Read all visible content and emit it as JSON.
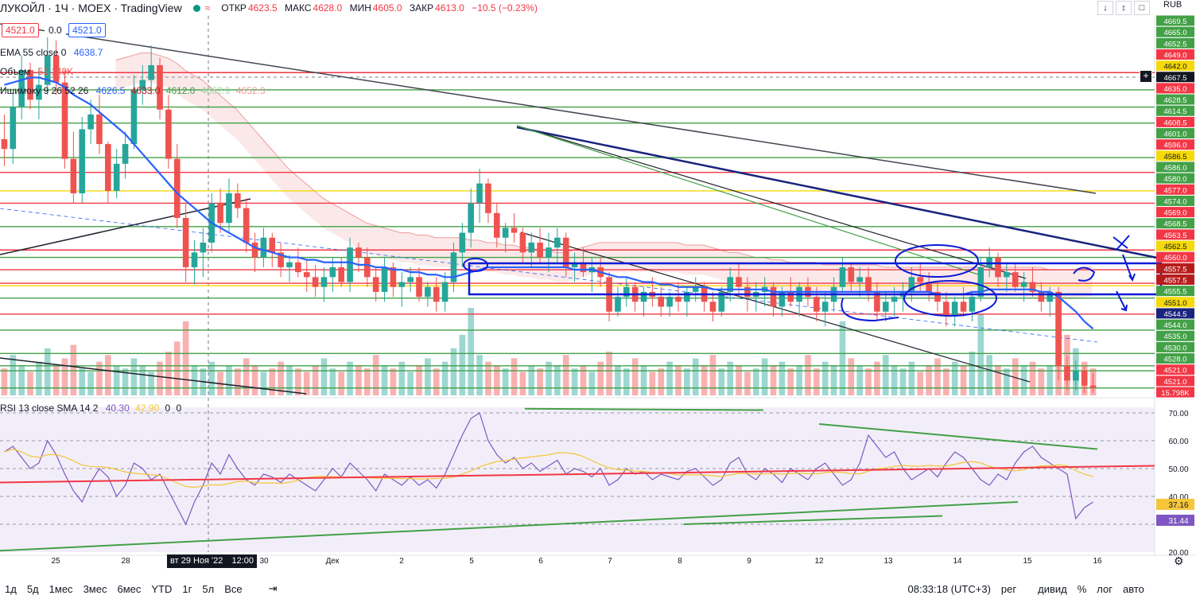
{
  "header": {
    "symbol": "ЛУКОЙЛ · 1Ч · MOEX · TradingView",
    "open_label": "ОТКР",
    "open": "4623.5",
    "high_label": "МАКС",
    "high": "4628.0",
    "low_label": "МИН",
    "low": "4605.0",
    "close_label": "ЗАКР",
    "close": "4613.0",
    "change": "−10.5 (−0.23%)",
    "currency": "RUB",
    "price_box_left": "4521.0",
    "price_box_mid": "0.0",
    "price_box_right": "4521.0"
  },
  "indicators": {
    "ema": {
      "label": "EMA 55 close 0",
      "value": "4638.7"
    },
    "volume": {
      "label": "Объем",
      "value": "51.149K"
    },
    "ichimoku": {
      "label": "Ишимоку 9 26 52 26",
      "values": [
        "4626.5",
        "4633.0",
        "4612.0",
        "4662.9",
        "4652.3"
      ]
    },
    "rsi": {
      "label": "RSI 13 close SMA 14 2",
      "values": [
        "40.30",
        "42.90",
        "0",
        "0"
      ]
    }
  },
  "crosshair": {
    "label": "вт 29 Ноя '22",
    "time": "12:00"
  },
  "bottom": {
    "ranges": [
      "1д",
      "5д",
      "1мес",
      "3мес",
      "6мес",
      "YTD",
      "1г",
      "5л",
      "Все"
    ],
    "time": "08:33:18 (UTC+3)",
    "session": "рег",
    "toggles": [
      "дивид",
      "%",
      "лог",
      "авто"
    ]
  },
  "colors": {
    "up": "#26a69a",
    "down": "#ef5350",
    "ema": "#2962ff",
    "rsi": "#7e57c2",
    "rsi_ma": "#f5c53a"
  },
  "chart_data": {
    "type": "candlestick",
    "interval": "1h",
    "price_axis_labels": [
      "4669.5",
      "4665.0",
      "4652.5",
      "4649.0",
      "4642.0",
      "4667.5",
      "4635.0",
      "4628.5",
      "4614.5",
      "4608.5",
      "4601.0",
      "4596.0",
      "4586.5",
      "4586.0",
      "4580.0",
      "4577.0",
      "4574.0",
      "4569.0",
      "4568.5",
      "4563.5",
      "4562.5",
      "4560.0",
      "4557.5",
      "4557.5",
      "4555.5",
      "4551.0",
      "4544.5",
      "4544.0",
      "4535.0",
      "4530.0",
      "4528.0",
      "4521.0",
      "4521.0",
      "15.798K"
    ],
    "x_tick_labels": [
      "25",
      "28",
      "30",
      "Дек",
      "2",
      "5",
      "6",
      "7",
      "8",
      "9",
      "12",
      "13",
      "14",
      "15",
      "16"
    ],
    "rsi_axis_labels": [
      "70.00",
      "60.00",
      "50.00",
      "40.00",
      "37.16",
      "31.44",
      "20.00"
    ],
    "rsi_ylim": [
      20,
      72
    ],
    "ylim": [
      4518,
      4672
    ],
    "candles": [
      [
        4622,
        4632,
        4611,
        4618
      ],
      [
        4618,
        4641,
        4612,
        4635
      ],
      [
        4635,
        4656,
        4630,
        4650
      ],
      [
        4650,
        4653,
        4634,
        4638
      ],
      [
        4638,
        4651,
        4630,
        4644
      ],
      [
        4644,
        4668,
        4640,
        4656
      ],
      [
        4656,
        4662,
        4640,
        4645
      ],
      [
        4645,
        4650,
        4610,
        4614
      ],
      [
        4614,
        4625,
        4596,
        4600
      ],
      [
        4600,
        4631,
        4596,
        4626
      ],
      [
        4626,
        4638,
        4620,
        4632
      ],
      [
        4632,
        4640,
        4616,
        4620
      ],
      [
        4620,
        4621,
        4596,
        4601
      ],
      [
        4601,
        4618,
        4598,
        4612
      ],
      [
        4612,
        4625,
        4606,
        4620
      ],
      [
        4620,
        4648,
        4618,
        4642
      ],
      [
        4642,
        4652,
        4636,
        4646
      ],
      [
        4646,
        4660,
        4640,
        4652
      ],
      [
        4652,
        4655,
        4630,
        4634
      ],
      [
        4634,
        4640,
        4610,
        4614
      ],
      [
        4614,
        4620,
        4586,
        4590
      ],
      [
        4590,
        4596,
        4564,
        4570
      ],
      [
        4570,
        4581,
        4563,
        4576
      ],
      [
        4576,
        4586,
        4566,
        4580
      ],
      [
        4580,
        4600,
        4576,
        4596
      ],
      [
        4596,
        4602,
        4584,
        4588
      ],
      [
        4588,
        4606,
        4584,
        4600
      ],
      [
        4600,
        4604,
        4590,
        4594
      ],
      [
        4594,
        4598,
        4576,
        4580
      ],
      [
        4580,
        4584,
        4568,
        4574
      ],
      [
        4574,
        4586,
        4570,
        4582
      ],
      [
        4582,
        4584,
        4570,
        4576
      ],
      [
        4576,
        4580,
        4566,
        4570
      ],
      [
        4570,
        4575,
        4564,
        4572
      ],
      [
        4572,
        4578,
        4566,
        4568
      ],
      [
        4568,
        4573,
        4560,
        4566
      ],
      [
        4566,
        4571,
        4558,
        4562
      ],
      [
        4562,
        4570,
        4556,
        4566
      ],
      [
        4566,
        4574,
        4560,
        4570
      ],
      [
        4570,
        4574,
        4562,
        4564
      ],
      [
        4564,
        4582,
        4560,
        4578
      ],
      [
        4578,
        4580,
        4568,
        4574
      ],
      [
        4574,
        4578,
        4562,
        4566
      ],
      [
        4566,
        4570,
        4556,
        4560
      ],
      [
        4560,
        4574,
        4556,
        4570
      ],
      [
        4570,
        4572,
        4558,
        4562
      ],
      [
        4562,
        4568,
        4554,
        4564
      ],
      [
        4564,
        4570,
        4560,
        4566
      ],
      [
        4566,
        4570,
        4556,
        4558
      ],
      [
        4558,
        4564,
        4554,
        4562
      ],
      [
        4562,
        4566,
        4552,
        4556
      ],
      [
        4556,
        4568,
        4552,
        4564
      ],
      [
        4564,
        4580,
        4560,
        4576
      ],
      [
        4576,
        4588,
        4570,
        4584
      ],
      [
        4584,
        4602,
        4578,
        4596
      ],
      [
        4596,
        4610,
        4588,
        4604
      ],
      [
        4604,
        4606,
        4588,
        4592
      ],
      [
        4592,
        4596,
        4578,
        4582
      ],
      [
        4582,
        4588,
        4576,
        4586
      ],
      [
        4586,
        4592,
        4580,
        4584
      ],
      [
        4584,
        4586,
        4572,
        4576
      ],
      [
        4576,
        4584,
        4570,
        4580
      ],
      [
        4580,
        4586,
        4572,
        4574
      ],
      [
        4574,
        4584,
        4568,
        4578
      ],
      [
        4578,
        4586,
        4572,
        4582
      ],
      [
        4582,
        4584,
        4566,
        4570
      ],
      [
        4570,
        4576,
        4564,
        4572
      ],
      [
        4572,
        4578,
        4566,
        4568
      ],
      [
        4568,
        4574,
        4560,
        4570
      ],
      [
        4570,
        4574,
        4562,
        4566
      ],
      [
        4566,
        4568,
        4548,
        4552
      ],
      [
        4552,
        4562,
        4550,
        4558
      ],
      [
        4558,
        4566,
        4554,
        4562
      ],
      [
        4562,
        4564,
        4552,
        4556
      ],
      [
        4556,
        4562,
        4550,
        4560
      ],
      [
        4560,
        4566,
        4554,
        4558
      ],
      [
        4558,
        4562,
        4550,
        4554
      ],
      [
        4554,
        4560,
        4550,
        4558
      ],
      [
        4558,
        4564,
        4552,
        4556
      ],
      [
        4556,
        4562,
        4550,
        4560
      ],
      [
        4560,
        4566,
        4556,
        4562
      ],
      [
        4562,
        4564,
        4552,
        4556
      ],
      [
        4556,
        4560,
        4548,
        4552
      ],
      [
        4552,
        4562,
        4550,
        4560
      ],
      [
        4560,
        4570,
        4556,
        4566
      ],
      [
        4566,
        4572,
        4558,
        4562
      ],
      [
        4562,
        4566,
        4552,
        4558
      ],
      [
        4558,
        4564,
        4552,
        4560
      ],
      [
        4560,
        4566,
        4554,
        4562
      ],
      [
        4562,
        4564,
        4550,
        4554
      ],
      [
        4554,
        4562,
        4550,
        4560
      ],
      [
        4560,
        4566,
        4554,
        4556
      ],
      [
        4556,
        4564,
        4550,
        4562
      ],
      [
        4562,
        4566,
        4554,
        4558
      ],
      [
        4558,
        4562,
        4548,
        4552
      ],
      [
        4552,
        4560,
        4546,
        4556
      ],
      [
        4556,
        4566,
        4552,
        4562
      ],
      [
        4562,
        4574,
        4560,
        4570
      ],
      [
        4570,
        4572,
        4560,
        4564
      ],
      [
        4564,
        4570,
        4558,
        4566
      ],
      [
        4566,
        4570,
        4556,
        4560
      ],
      [
        4560,
        4564,
        4548,
        4552
      ],
      [
        4552,
        4560,
        4548,
        4556
      ],
      [
        4556,
        4562,
        4550,
        4558
      ],
      [
        4558,
        4564,
        4552,
        4560
      ],
      [
        4560,
        4570,
        4556,
        4566
      ],
      [
        4566,
        4572,
        4560,
        4564
      ],
      [
        4564,
        4568,
        4556,
        4560
      ],
      [
        4560,
        4564,
        4552,
        4556
      ],
      [
        4556,
        4560,
        4546,
        4550
      ],
      [
        4550,
        4558,
        4546,
        4556
      ],
      [
        4556,
        4562,
        4550,
        4552
      ],
      [
        4552,
        4560,
        4548,
        4558
      ],
      [
        4558,
        4574,
        4556,
        4570
      ],
      [
        4570,
        4578,
        4566,
        4574
      ],
      [
        4574,
        4576,
        4562,
        4566
      ],
      [
        4566,
        4572,
        4560,
        4568
      ],
      [
        4568,
        4572,
        4560,
        4562
      ],
      [
        4562,
        4568,
        4556,
        4564
      ],
      [
        4564,
        4570,
        4558,
        4560
      ],
      [
        4560,
        4564,
        4552,
        4556
      ],
      [
        4556,
        4562,
        4550,
        4560
      ],
      [
        4560,
        4562,
        4524,
        4530
      ],
      [
        4530,
        4534,
        4520,
        4524
      ],
      [
        4524,
        4532,
        4520,
        4528
      ],
      [
        4528,
        4530,
        4519,
        4522
      ],
      [
        4522,
        4527,
        4519,
        4521
      ]
    ],
    "ema55": [
      4644,
      4645,
      4646,
      4647,
      4647,
      4646,
      4645,
      4643,
      4640,
      4638,
      4636,
      4633,
      4630,
      4627,
      4624,
      4620,
      4616,
      4612,
      4608,
      4604,
      4600,
      4597,
      4594,
      4591,
      4588,
      4586,
      4584,
      4582,
      4580,
      4578,
      4577,
      4576,
      4575,
      4574,
      4574,
      4573,
      4573,
      4572,
      4572,
      4572,
      4572,
      4571,
      4571,
      4570,
      4570,
      4569,
      4569,
      4568,
      4568,
      4567,
      4567,
      4566,
      4566,
      4567,
      4568,
      4569,
      4570,
      4570,
      4570,
      4570,
      4570,
      4570,
      4570,
      4570,
      4570,
      4570,
      4569,
      4569,
      4569,
      4568,
      4567,
      4566,
      4566,
      4565,
      4564,
      4564,
      4563,
      4563,
      4562,
      4562,
      4562,
      4562,
      4561,
      4561,
      4561,
      4561,
      4561,
      4561,
      4561,
      4560,
      4560,
      4560,
      4560,
      4560,
      4560,
      4560,
      4560,
      4560,
      4560,
      4560,
      4560,
      4560,
      4560,
      4560,
      4560,
      4560,
      4560,
      4560,
      4559,
      4559,
      4559,
      4559,
      4560,
      4560,
      4561,
      4561,
      4561,
      4561,
      4561,
      4561,
      4560,
      4560,
      4558,
      4555,
      4552,
      4548,
      4545
    ],
    "volume": [
      8,
      12,
      9,
      7,
      10,
      14,
      9,
      11,
      15,
      8,
      7,
      10,
      12,
      9,
      8,
      11,
      9,
      7,
      10,
      13,
      16,
      22,
      9,
      8,
      10,
      7,
      9,
      8,
      11,
      9,
      7,
      8,
      10,
      9,
      8,
      7,
      9,
      11,
      8,
      7,
      10,
      9,
      8,
      12,
      9,
      8,
      10,
      7,
      9,
      11,
      8,
      10,
      14,
      18,
      26,
      12,
      10,
      9,
      8,
      11,
      7,
      9,
      8,
      10,
      9,
      12,
      8,
      9,
      7,
      10,
      13,
      9,
      8,
      11,
      9,
      7,
      8,
      10,
      9,
      8,
      11,
      9,
      12,
      8,
      10,
      9,
      7,
      8,
      11,
      9,
      10,
      8,
      9,
      12,
      8,
      10,
      9,
      22,
      11,
      9,
      8,
      10,
      12,
      9,
      8,
      10,
      7,
      9,
      11,
      8,
      10,
      9,
      13,
      24,
      12,
      9,
      8,
      11,
      9,
      10,
      8,
      9,
      26,
      18,
      14,
      10,
      8
    ],
    "rsi": [
      56,
      58,
      54,
      50,
      52,
      60,
      55,
      48,
      42,
      38,
      45,
      50,
      47,
      40,
      44,
      52,
      50,
      46,
      48,
      42,
      36,
      30,
      38,
      44,
      52,
      48,
      55,
      50,
      46,
      44,
      48,
      47,
      45,
      48,
      46,
      44,
      42,
      46,
      50,
      47,
      52,
      49,
      46,
      42,
      48,
      46,
      44,
      47,
      44,
      46,
      43,
      48,
      55,
      62,
      68,
      70,
      60,
      55,
      52,
      54,
      50,
      52,
      49,
      51,
      53,
      48,
      50,
      49,
      47,
      50,
      44,
      46,
      50,
      48,
      49,
      46,
      48,
      47,
      46,
      49,
      50,
      47,
      44,
      46,
      52,
      54,
      48,
      46,
      50,
      48,
      45,
      50,
      48,
      46,
      50,
      52,
      48,
      44,
      46,
      52,
      62,
      58,
      54,
      56,
      50,
      46,
      48,
      50,
      47,
      52,
      56,
      54,
      50,
      46,
      44,
      48,
      46,
      52,
      56,
      58,
      54,
      52,
      50,
      48,
      32,
      36,
      38
    ]
  }
}
